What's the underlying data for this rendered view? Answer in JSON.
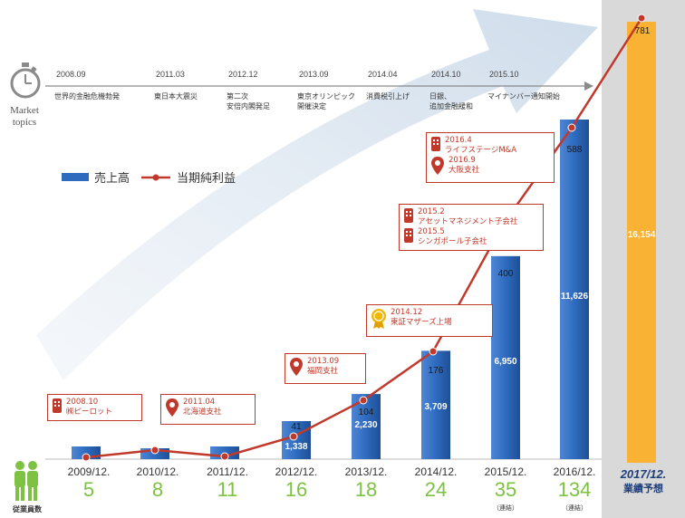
{
  "market": {
    "label_line1": "Market",
    "label_line2": "topics",
    "topics": [
      {
        "year": "2008.09",
        "text": [
          "世界的金融危機勃発"
        ]
      },
      {
        "year": "2011.03",
        "text": [
          "東日本大震災"
        ]
      },
      {
        "year": "2012.12",
        "text": [
          "第二次",
          "安倍内閣発足"
        ]
      },
      {
        "year": "2013.09",
        "text": [
          "東京オリンピック",
          "開催決定"
        ]
      },
      {
        "year": "2014.04",
        "text": [
          "消費税引上げ"
        ]
      },
      {
        "year": "2014.10",
        "text": [
          "日銀、",
          "追加金融緩和"
        ]
      },
      {
        "year": "2015.10",
        "text": [
          "マイナンバー通知開始"
        ]
      }
    ]
  },
  "legend": {
    "sales": "売上高",
    "profit": "当期純利益"
  },
  "chart_data": {
    "type": "bar",
    "categories": [
      "2009/12.",
      "2010/12.",
      "2011/12.",
      "2012/12.",
      "2013/12.",
      "2014/12.",
      "2015/12.",
      "2016/12."
    ],
    "series": [
      {
        "name": "売上高",
        "values": [
          null,
          null,
          null,
          1338,
          2230,
          3709,
          6950,
          11626
        ]
      },
      {
        "name": "当期純利益",
        "values": [
          null,
          null,
          null,
          41,
          104,
          176,
          400,
          588
        ]
      }
    ],
    "forecast": {
      "label_line1": "2017/12.",
      "label_line2": "業績予想",
      "sales": 16154,
      "profit": 781
    },
    "colors": {
      "sales": "#2e6bbf",
      "profit": "#c0392b",
      "forecast": "#f9b233",
      "forecast_bg": "#d9d9d9"
    }
  },
  "employees": {
    "label": "従業員数",
    "counts": [
      "5",
      "8",
      "11",
      "16",
      "18",
      "24",
      "35",
      "134"
    ],
    "notes": [
      "",
      "",
      "",
      "",
      "",
      "",
      "（連結）",
      "（連結）"
    ]
  },
  "events": [
    {
      "icon": "building-icon",
      "lines": [
        "2008.10",
        "㈱ピーロット"
      ]
    },
    {
      "icon": "map-pin-icon",
      "lines": [
        "2011.04",
        "北海道支社"
      ]
    },
    {
      "icon": "map-pin-icon",
      "lines": [
        "2013.09",
        "福岡支社"
      ]
    },
    {
      "icon": "award-ribbon-icon",
      "lines": [
        "2014.12",
        "東証マザーズ上場"
      ]
    },
    {
      "icon": "building-icon",
      "lines": [
        "2015.2",
        "アセットマネジメント子会社"
      ],
      "icon2": "building-icon",
      "lines2": [
        "2015.5",
        "シンガポール子会社"
      ]
    },
    {
      "icon": "building-icon",
      "lines": [
        "2016.4",
        "ライフステージM&A"
      ],
      "icon2": "map-pin-icon",
      "lines2": [
        "2016.9",
        "大阪支社"
      ]
    }
  ]
}
